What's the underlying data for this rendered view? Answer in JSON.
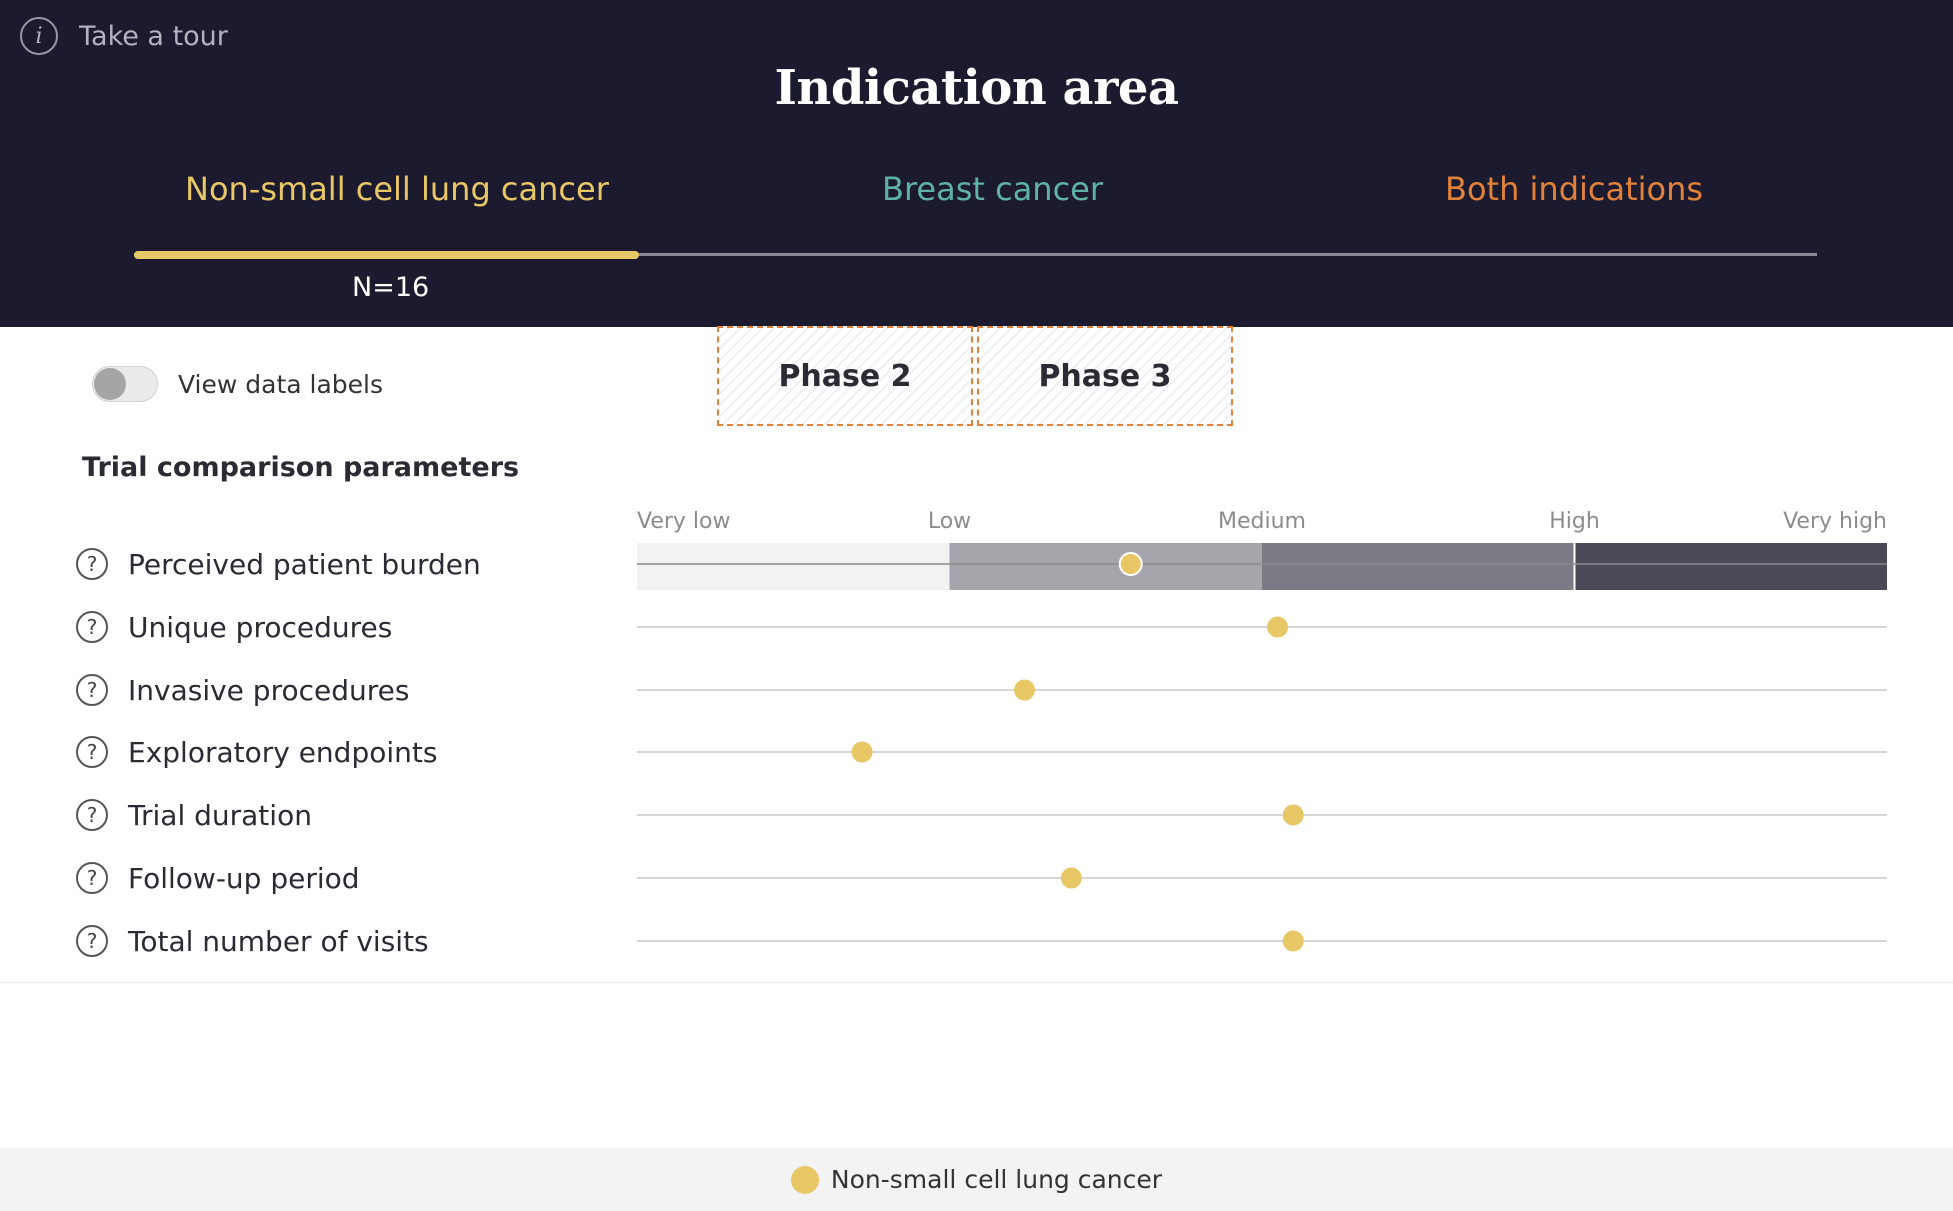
{
  "header": {
    "tour_label": "Take a tour",
    "title": "Indication area",
    "tabs": [
      {
        "label": "Non-small cell lung cancer",
        "color": "#e8c766",
        "active": true
      },
      {
        "label": "Breast cancer",
        "color": "#5fb2a6",
        "active": false
      },
      {
        "label": "Both indications",
        "color": "#e0823a",
        "active": false
      }
    ],
    "count_label": "N=16"
  },
  "controls": {
    "toggle_label": "View data labels",
    "toggle_on": false,
    "phases": [
      {
        "label": "Phase 2"
      },
      {
        "label": "Phase 3"
      }
    ]
  },
  "section_title": "Trial comparison parameters",
  "chart_data": {
    "type": "scatter",
    "scale_labels": [
      "Very low",
      "Low",
      "Medium",
      "High",
      "Very high"
    ],
    "scale_range": [
      0,
      4
    ],
    "band_colors": [
      "#f2f2f2",
      "#a6a5ab",
      "#7c7a85",
      "#4b4958"
    ],
    "series": [
      {
        "name": "Non-small cell lung cancer",
        "color": "#e8c766",
        "points": [
          {
            "parameter": "Perceived patient burden",
            "value": 1.58
          },
          {
            "parameter": "Unique procedures",
            "value": 2.05
          },
          {
            "parameter": "Invasive procedures",
            "value": 1.24
          },
          {
            "parameter": "Exploratory endpoints",
            "value": 0.72
          },
          {
            "parameter": "Trial duration",
            "value": 2.1
          },
          {
            "parameter": "Follow-up period",
            "value": 1.39
          },
          {
            "parameter": "Total number of visits",
            "value": 2.1
          }
        ]
      }
    ]
  },
  "legend": {
    "label": "Non-small cell lung cancer",
    "color": "#e8c766"
  }
}
